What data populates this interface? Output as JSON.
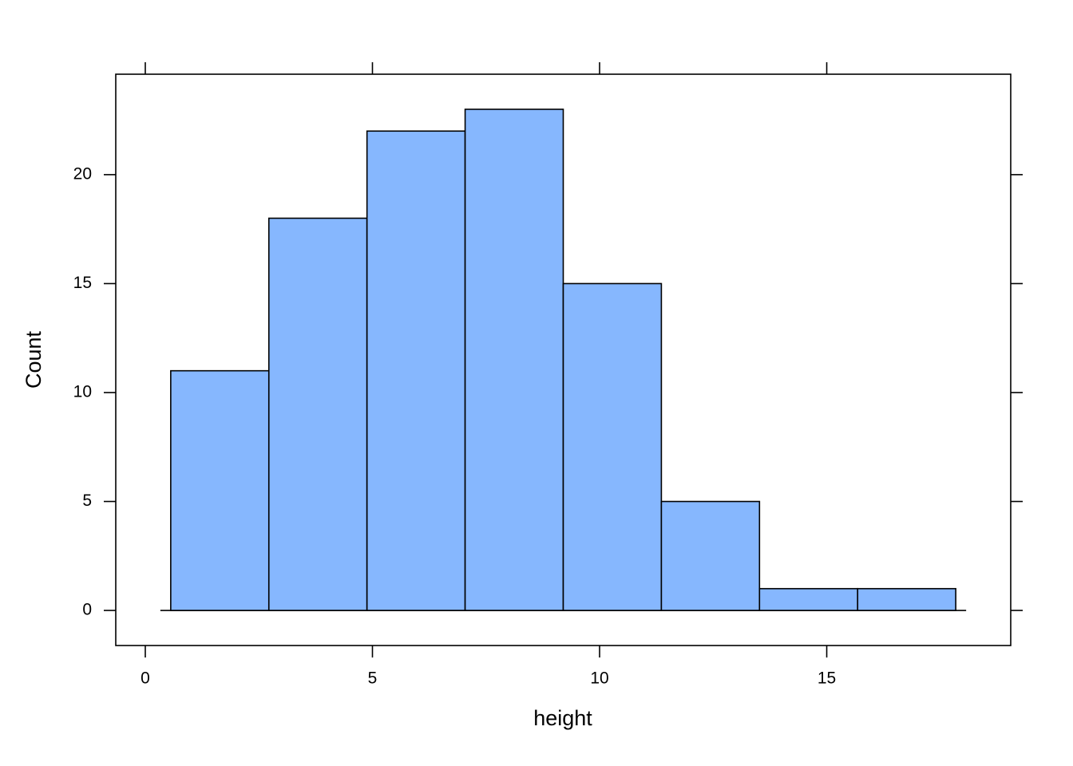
{
  "chart_data": {
    "type": "histogram",
    "xlabel": "height",
    "ylabel": "Count",
    "bins": [
      0.56,
      2.72,
      4.88,
      7.04,
      9.2,
      11.36,
      13.52,
      15.68,
      17.84
    ],
    "values": [
      11,
      18,
      22,
      23,
      15,
      5,
      1,
      1
    ],
    "color": "#86b7fe",
    "xlim": [
      -0.65,
      19.05
    ],
    "ylim": [
      -1.61,
      24.61
    ],
    "xticks": [
      0,
      5,
      10,
      15
    ],
    "yticks": [
      0,
      5,
      10,
      15,
      20
    ]
  }
}
